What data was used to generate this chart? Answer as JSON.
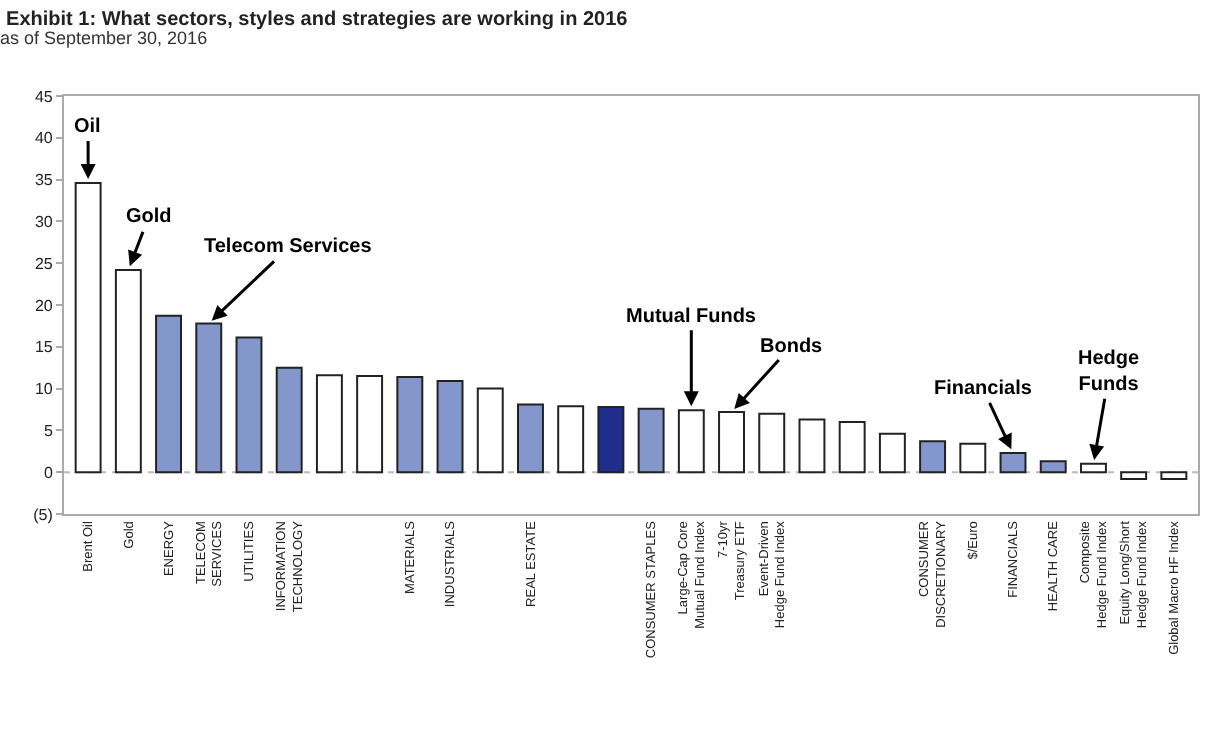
{
  "chart_data": {
    "type": "bar",
    "title": "Exhibit 1: What sectors, styles and strategies are working in 2016",
    "subtitle": "as of September 30, 2016",
    "categories": [
      "Brent Oil",
      "Gold",
      "ENERGY",
      "TELECOM\nSERVICES",
      "UTILITIES",
      "INFORMATION\nTECHNOLOGY",
      null,
      null,
      "MATERIALS",
      "INDUSTRIALS",
      null,
      "REAL ESTATE",
      null,
      null,
      "CONSUMER STAPLES",
      "Large-Cap Core\nMutual Fund Index",
      "7-10yr\nTreasury ETF",
      "Event-Driven\nHedge Fund Index",
      null,
      null,
      null,
      "CONSUMER\nDISCRETIONARY",
      "$/Euro",
      "FINANCIALS",
      "HEALTH CARE",
      "Composite\nHedge Fund Index",
      "Equity Long/Short\nHedge Fund Index",
      "Global Macro HF Index"
    ],
    "values": [
      34.6,
      24.2,
      18.7,
      17.8,
      16.1,
      12.5,
      11.6,
      11.5,
      11.4,
      10.9,
      10.0,
      8.1,
      7.9,
      7.8,
      7.6,
      7.4,
      7.2,
      7.0,
      6.3,
      6.0,
      4.6,
      3.7,
      3.4,
      2.3,
      1.3,
      1.0,
      -0.8,
      -0.8
    ],
    "colors": [
      "#ffffff",
      "#ffffff",
      "#8497cc",
      "#8497cc",
      "#8497cc",
      "#8497cc",
      "#ffffff",
      "#ffffff",
      "#8497cc",
      "#8497cc",
      "#ffffff",
      "#8497cc",
      "#ffffff",
      "#1f2d8c",
      "#8497cc",
      "#ffffff",
      "#ffffff",
      "#ffffff",
      "#ffffff",
      "#ffffff",
      "#ffffff",
      "#8497cc",
      "#ffffff",
      "#8497cc",
      "#8497cc",
      "#ffffff",
      "#ffffff",
      "#ffffff"
    ],
    "ref_lines": [
      {
        "axis": "y",
        "value": 0,
        "color": "#bbbbbb",
        "line_style": "dotted"
      }
    ],
    "ylim": [
      -5,
      45
    ],
    "yticks": [
      {
        "value": -5,
        "label": "(5)"
      },
      0,
      5,
      10,
      15,
      20,
      25,
      30,
      35,
      40,
      45
    ],
    "grid": false,
    "annotations": [
      {
        "text": "Oil",
        "x": "Brent Oil",
        "y": 34.6
      },
      {
        "text": "Gold",
        "x": "Gold",
        "y": 24.2
      },
      {
        "text": "Telecom Services",
        "x": "TELECOM\nSERVICES",
        "y": 17.8
      },
      {
        "text": "Mutual Funds",
        "x": "Large-Cap Core\nMutual Fund Index",
        "y": 7.4
      },
      {
        "text": "Bonds",
        "x": "7-10yr\nTreasury ETF",
        "y": 7.2
      },
      {
        "text": "Financials",
        "x": "FINANCIALS",
        "y": 2.3
      },
      {
        "text": "Hedge\nFunds",
        "x": "Composite\nHedge Fund Index",
        "y": 1.0
      }
    ]
  }
}
